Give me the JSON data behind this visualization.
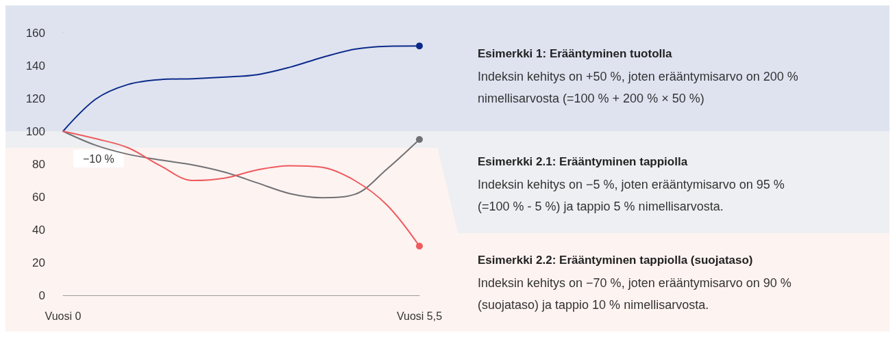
{
  "chart_data": {
    "type": "line",
    "categories": [
      "Vuosi 0",
      null,
      null,
      null,
      null,
      null,
      null,
      null,
      null,
      null,
      null,
      "Vuosi 5,5"
    ],
    "ylim": [
      0,
      160
    ],
    "yticks": [
      0,
      20,
      40,
      60,
      80,
      100,
      120,
      140,
      160
    ],
    "series": [
      {
        "color": "#0b2a8a",
        "values": [
          100,
          119.5,
          128.5,
          131.5,
          132,
          133,
          134.5,
          139,
          145,
          150,
          151.8,
          152
        ]
      },
      {
        "color": "#707074",
        "values": [
          100,
          91.5,
          86,
          82.5,
          79.5,
          75,
          68.5,
          62,
          59.5,
          61.5,
          77,
          95
        ]
      },
      {
        "color": "#ee5a5e",
        "values": [
          100,
          95.5,
          90,
          79,
          70,
          71.5,
          76.5,
          79,
          78,
          70,
          55,
          30
        ]
      }
    ],
    "bands": [
      {
        "axis": "y",
        "from": 100,
        "to": 160,
        "color": "#dfe3f0"
      },
      {
        "axis": "y",
        "from": 90,
        "to": 100,
        "color": "#edeff2",
        "label": "−10 %"
      },
      {
        "axis": "y",
        "from": 0,
        "to": 90,
        "color": "#fdf3f1"
      }
    ],
    "annotations": [
      "Esimerkki 1: Erääntyminen tuotolla",
      "Indeksin kehitys on +50 %, joten erääntymisarvo on 200 % nimellisarvosta (=100 % + 200 % × 50 %)",
      "Esimerkki 2.1: Erääntyminen tappiolla",
      "Indeksin kehitys on −5 %, joten erääntymisarvo on 95 % (=100 % - 5 %) ja tappio 5 % nimellisarvosta.",
      "Esimerkki 2.2: Erääntyminen tappiolla (suojataso)",
      "Indeksin kehitys on −70 %, joten erääntymisarvo on 90 % (suojataso) ja tappio 10 % nimellisarvosta."
    ]
  }
}
